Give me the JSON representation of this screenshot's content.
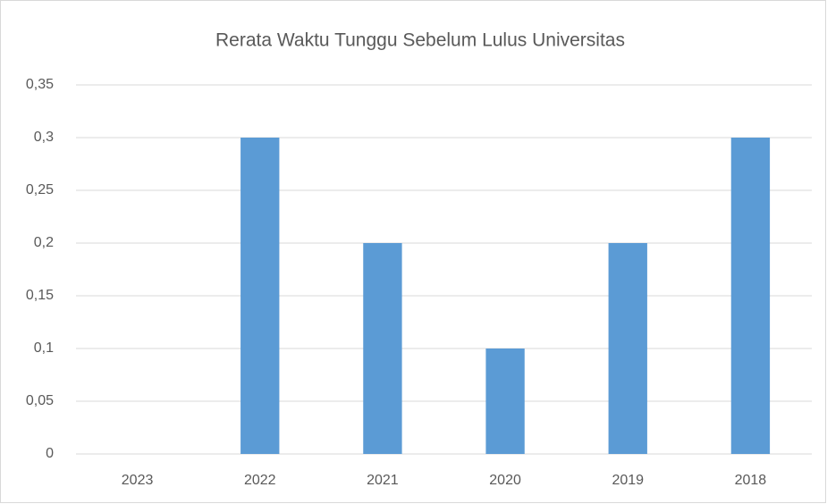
{
  "chart_data": {
    "type": "bar",
    "title": "Rerata Waktu Tunggu Sebelum Lulus Universitas",
    "categories": [
      "2023",
      "2022",
      "2021",
      "2020",
      "2019",
      "2018"
    ],
    "values": [
      0,
      0.3,
      0.2,
      0.1,
      0.2,
      0.3
    ],
    "color": "#5b9bd5",
    "ylim": [
      0,
      0.35
    ],
    "yticks": [
      0,
      {
        "value": 0.05,
        "label": "0,05"
      },
      {
        "value": 0.1,
        "label": "0,1"
      },
      {
        "value": 0.15,
        "label": "0,15"
      },
      {
        "value": 0.2,
        "label": "0,2"
      },
      {
        "value": 0.25,
        "label": "0,25"
      },
      {
        "value": 0.3,
        "label": "0,3"
      },
      {
        "value": 0.35,
        "label": "0,35"
      }
    ],
    "grid": true
  }
}
